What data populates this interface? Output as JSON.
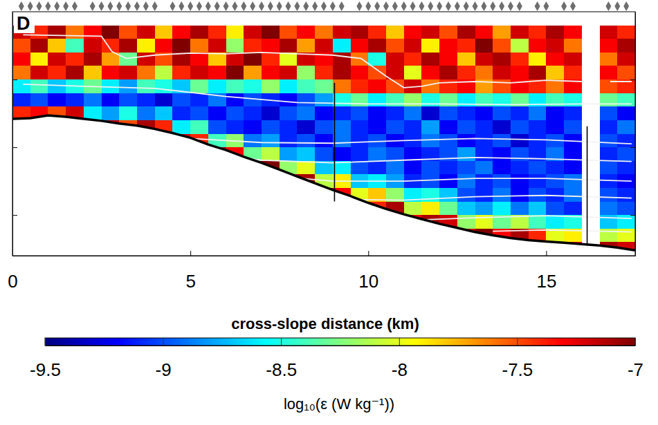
{
  "chart_data": {
    "type": "heatmap",
    "panel_label": "D",
    "xlabel": "cross-slope distance (km)",
    "xlim": [
      0,
      17.5
    ],
    "xticks": [
      0,
      5,
      10,
      15
    ],
    "ylim": [
      0,
      360
    ],
    "yticks": [
      100,
      200,
      300
    ],
    "tick_labels": "x",
    "cells": {
      "x": [
        0.25,
        0.75,
        1.25,
        1.75,
        2.25,
        2.75,
        3.25,
        3.75,
        4.25,
        4.75,
        5.25,
        5.75,
        6.25,
        6.75,
        7.25,
        7.75,
        8.25,
        8.75,
        9.25,
        9.75,
        10.25,
        10.75,
        11.25,
        11.75,
        12.25,
        12.75,
        13.25,
        13.75,
        14.25,
        14.75,
        15.25,
        15.75,
        16.25,
        16.75,
        17.25
      ],
      "y": [
        10,
        30,
        50,
        70,
        90,
        110,
        130,
        150,
        170,
        190,
        210,
        230,
        250,
        270,
        290,
        310,
        330,
        350
      ],
      "values": [
        [
          null,
          null,
          null,
          null,
          null,
          null,
          null,
          null,
          null,
          null,
          null,
          null,
          null,
          null,
          null,
          null,
          null,
          null,
          null,
          null,
          null,
          null,
          null,
          null,
          null,
          null,
          null,
          null,
          null,
          null,
          null,
          null,
          null,
          null,
          null
        ],
        [
          -7.2,
          -7.4,
          -7.1,
          -7.6,
          -7.3,
          -7.0,
          -7.5,
          -7.2,
          -7.8,
          -7.3,
          -7.1,
          -7.4,
          -7.9,
          -7.2,
          -7.0,
          -7.5,
          -7.3,
          -7.6,
          -7.2,
          -7.1,
          -7.4,
          -7.8,
          -7.3,
          -7.2,
          -7.5,
          -7.1,
          -7.3,
          -7.7,
          -7.2,
          -7.4,
          -7.1,
          -7.3,
          null,
          -7.2,
          -7.4
        ],
        [
          -7.5,
          -7.1,
          -7.8,
          -8.4,
          -7.2,
          -7.4,
          -7.1,
          -7.9,
          -7.3,
          -7.0,
          -7.6,
          -7.2,
          -8.2,
          -7.4,
          -7.3,
          -7.1,
          -7.7,
          -7.2,
          -8.6,
          -7.3,
          -7.1,
          -7.5,
          -7.2,
          -7.9,
          -7.3,
          -7.4,
          -7.0,
          -7.5,
          -8.1,
          -7.3,
          -7.2,
          -7.6,
          null,
          -7.3,
          -7.1
        ],
        [
          -7.3,
          -7.9,
          -7.2,
          -7.4,
          -7.1,
          -7.7,
          -8.3,
          -7.2,
          -7.5,
          -7.1,
          -7.3,
          -7.8,
          -7.2,
          -7.0,
          -7.4,
          -8.0,
          -7.2,
          -7.3,
          -7.1,
          -7.6,
          -8.5,
          -7.2,
          -7.4,
          -7.1,
          -7.3,
          -7.8,
          -7.2,
          -7.1,
          -7.4,
          -7.9,
          -7.3,
          -7.2,
          null,
          -7.6,
          -7.2
        ],
        [
          -7.6,
          -7.2,
          -7.4,
          -7.1,
          -7.8,
          -7.3,
          -7.2,
          -7.6,
          -8.1,
          -7.4,
          -7.2,
          -7.3,
          -7.0,
          -7.7,
          -7.3,
          -7.2,
          -8.2,
          -7.4,
          -7.1,
          -7.3,
          -7.5,
          -7.2,
          -8.0,
          -7.3,
          -7.1,
          -7.4,
          -7.6,
          -7.2,
          -7.3,
          -7.1,
          -7.8,
          -7.4,
          null,
          -7.3,
          -7.5
        ],
        [
          -8.6,
          -8.4,
          -8.7,
          -8.5,
          -8.3,
          -8.6,
          -8.8,
          -8.4,
          -8.5,
          -8.7,
          -8.3,
          -8.6,
          -8.4,
          -8.5,
          -8.2,
          -8.6,
          -8.4,
          -8.3,
          -7.6,
          -7.4,
          -7.3,
          -7.5,
          -7.2,
          -7.6,
          -7.4,
          -7.3,
          -7.7,
          -7.5,
          -7.3,
          -7.4,
          -7.6,
          -7.3,
          null,
          -7.5,
          -7.4
        ],
        [
          -9.1,
          -9.0,
          -9.2,
          -9.1,
          -8.9,
          -9.2,
          -9.0,
          -9.1,
          -9.3,
          -9.0,
          -9.1,
          -8.9,
          -9.2,
          -9.0,
          -9.1,
          -9.2,
          -9.0,
          -8.8,
          -8.5,
          -8.3,
          -8.6,
          -8.4,
          -8.2,
          -8.5,
          -8.3,
          -8.6,
          -8.4,
          -8.5,
          -8.3,
          -8.6,
          -8.4,
          -8.5,
          null,
          -8.3,
          -8.4
        ],
        [
          -7.4,
          -7.3,
          -7.5,
          -7.2,
          -8.6,
          -8.8,
          -8.5,
          -8.9,
          -8.7,
          -9.1,
          -9.0,
          -9.2,
          -9.0,
          -9.1,
          -9.3,
          -9.0,
          -8.9,
          -9.2,
          -9.1,
          -9.0,
          -9.2,
          -9.1,
          -8.9,
          -9.3,
          -9.0,
          -9.1,
          -9.2,
          -9.0,
          -9.1,
          -8.9,
          -9.2,
          -9.1,
          null,
          -9.0,
          -9.2
        ],
        [
          null,
          null,
          null,
          null,
          -7.3,
          -7.2,
          -7.5,
          -7.1,
          -7.4,
          -8.6,
          -8.4,
          -9.0,
          -9.1,
          -9.2,
          -9.0,
          -9.1,
          -9.3,
          -9.0,
          -8.9,
          -9.1,
          -9.2,
          -9.0,
          -9.1,
          -8.8,
          -9.2,
          -9.0,
          -9.1,
          -9.3,
          -9.0,
          -9.1,
          -9.2,
          -9.0,
          null,
          -9.1,
          -8.9
        ],
        [
          null,
          null,
          null,
          null,
          null,
          null,
          null,
          null,
          null,
          -7.2,
          -7.4,
          -8.4,
          -8.2,
          -8.9,
          -8.8,
          -9.1,
          -9.0,
          -9.2,
          -8.9,
          -9.1,
          -9.0,
          -9.2,
          -9.1,
          -8.9,
          -9.0,
          -9.2,
          -9.1,
          -9.0,
          -9.3,
          -9.1,
          -9.0,
          -9.2,
          null,
          -9.0,
          -9.1
        ],
        [
          null,
          null,
          null,
          null,
          null,
          null,
          null,
          null,
          null,
          null,
          null,
          -7.1,
          -7.3,
          -8.3,
          -8.1,
          -8.8,
          -8.7,
          -9.0,
          -9.2,
          -9.1,
          -8.9,
          -9.0,
          -9.2,
          -9.1,
          -9.0,
          -8.8,
          -9.1,
          -9.2,
          -9.0,
          -9.1,
          -8.9,
          -9.2,
          null,
          -9.1,
          -9.0
        ],
        [
          null,
          null,
          null,
          null,
          null,
          null,
          null,
          null,
          null,
          null,
          null,
          null,
          null,
          -7.2,
          -7.0,
          -8.2,
          -8.0,
          -8.7,
          -8.6,
          -9.0,
          -9.1,
          -8.9,
          -9.2,
          -9.0,
          -9.1,
          -9.0,
          -8.9,
          -9.2,
          -9.1,
          -9.0,
          -9.1,
          -9.2,
          null,
          -9.0,
          -9.1
        ],
        [
          null,
          null,
          null,
          null,
          null,
          null,
          null,
          null,
          null,
          null,
          null,
          null,
          null,
          null,
          null,
          -7.3,
          -7.1,
          -8.1,
          -7.9,
          -8.7,
          -8.6,
          -8.8,
          -9.1,
          -9.0,
          -9.2,
          -8.9,
          -9.1,
          -9.0,
          -9.2,
          -9.1,
          -9.0,
          -8.9,
          null,
          -9.1,
          -9.2
        ],
        [
          null,
          null,
          null,
          null,
          null,
          null,
          null,
          null,
          null,
          null,
          null,
          null,
          null,
          null,
          null,
          null,
          null,
          -7.1,
          -7.3,
          -8.0,
          -7.8,
          -8.2,
          -8.6,
          -8.5,
          -8.7,
          -9.0,
          -9.1,
          -8.9,
          -9.2,
          -9.0,
          -9.1,
          -8.9,
          null,
          -9.0,
          -9.1
        ],
        [
          null,
          null,
          null,
          null,
          null,
          null,
          null,
          null,
          null,
          null,
          null,
          null,
          null,
          null,
          null,
          null,
          null,
          null,
          null,
          -7.2,
          -7.4,
          -7.1,
          -8.1,
          -7.9,
          -8.3,
          -8.7,
          -8.8,
          -8.6,
          -8.9,
          -8.7,
          -9.0,
          -9.1,
          null,
          -8.9,
          -9.0
        ],
        [
          null,
          null,
          null,
          null,
          null,
          null,
          null,
          null,
          null,
          null,
          null,
          null,
          null,
          null,
          null,
          null,
          null,
          null,
          null,
          null,
          null,
          null,
          -7.3,
          -7.1,
          -7.2,
          -8.2,
          -8.0,
          -8.3,
          -8.1,
          -8.4,
          -8.6,
          -8.5,
          null,
          -8.7,
          -8.6
        ],
        [
          null,
          null,
          null,
          null,
          null,
          null,
          null,
          null,
          null,
          null,
          null,
          null,
          null,
          null,
          null,
          null,
          null,
          null,
          null,
          null,
          null,
          null,
          null,
          null,
          null,
          -7.2,
          -7.0,
          -7.3,
          -7.1,
          -7.4,
          -8.0,
          -7.9,
          null,
          -8.1,
          -8.0
        ],
        [
          null,
          null,
          null,
          null,
          null,
          null,
          null,
          null,
          null,
          null,
          null,
          null,
          null,
          null,
          null,
          null,
          null,
          null,
          null,
          null,
          null,
          null,
          null,
          null,
          null,
          null,
          null,
          null,
          null,
          null,
          -7.2,
          -7.3,
          null,
          -7.1,
          -7.2
        ]
      ]
    },
    "colorbar": {
      "label": "log₁₀(ε (W kg⁻¹))",
      "lim": [
        -9.5,
        -7
      ],
      "ticks": [
        -9.5,
        -9,
        -8.5,
        -8,
        -7.5,
        -7
      ]
    },
    "bathymetry": {
      "x": [
        0,
        0.5,
        1,
        1.5,
        2,
        2.5,
        3,
        3.5,
        4,
        4.5,
        5,
        5.5,
        6,
        6.5,
        7,
        7.5,
        8,
        8.5,
        9,
        9.5,
        10,
        10.5,
        11,
        11.5,
        12,
        12.5,
        13,
        13.5,
        14,
        14.5,
        15,
        15.5,
        16,
        16.5,
        17,
        17.5
      ],
      "y": [
        158,
        157,
        153,
        155,
        158,
        161,
        165,
        168,
        173,
        179,
        186,
        196,
        204,
        214,
        223,
        233,
        243,
        253,
        263,
        272,
        282,
        291,
        299,
        306,
        313,
        319,
        325,
        330,
        334,
        337,
        339,
        341,
        343,
        345,
        348,
        352
      ]
    },
    "isopycnals": [
      {
        "x": [
          0.3,
          2.5,
          2.8,
          3.2,
          4,
          5,
          6,
          7,
          8,
          9,
          9.8,
          10.5,
          11,
          11.5,
          12,
          13,
          14,
          15,
          16,
          16.4,
          16.8,
          17.4
        ],
        "y": [
          34,
          36,
          59,
          69,
          64,
          61,
          62,
          60,
          62,
          64,
          69,
          95,
          112,
          110,
          105,
          103,
          105,
          101,
          103,
          null,
          103,
          103
        ]
      },
      {
        "x": [
          0.3,
          2,
          4,
          6,
          8,
          10,
          12,
          14,
          16,
          17.4
        ],
        "y": [
          107,
          110,
          113,
          125,
          134,
          136,
          136,
          137,
          136,
          136
        ]
      },
      {
        "x": [
          3.5,
          5,
          7,
          9,
          11,
          13,
          15,
          17.4
        ],
        "y": [
          177,
          187,
          193,
          194,
          190,
          187,
          189,
          195
        ]
      },
      {
        "x": [
          5.5,
          7,
          9,
          11,
          13,
          15,
          17.4
        ],
        "y": [
          209,
          219,
          223,
          219,
          215,
          217,
          221
        ]
      },
      {
        "x": [
          7.5,
          9,
          11,
          13,
          15,
          17.4
        ],
        "y": [
          243,
          250,
          250,
          246,
          246,
          250
        ]
      },
      {
        "x": [
          9.5,
          11,
          13,
          15,
          17.4
        ],
        "y": [
          277,
          278,
          273,
          271,
          275
        ]
      },
      {
        "x": [
          11.5,
          13,
          15,
          17.4
        ],
        "y": [
          307,
          304,
          301,
          305
        ]
      },
      {
        "x": [
          13.5,
          15,
          17.4
        ],
        "y": [
          324,
          322,
          325
        ]
      }
    ],
    "profiles": {
      "x": [
        0.25,
        0.5,
        0.75,
        1,
        1.25,
        1.5,
        1.75,
        2.25,
        2.5,
        2.75,
        3,
        3.25,
        3.5,
        3.75,
        4,
        4.5,
        4.75,
        5,
        5.25,
        5.5,
        5.75,
        6,
        6.25,
        6.5,
        6.75,
        7,
        7.25,
        7.5,
        7.75,
        8,
        8.25,
        8.5,
        8.75,
        9,
        9.25,
        9.75,
        10,
        10.25,
        10.5,
        10.75,
        11,
        11.25,
        11.5,
        11.75,
        12,
        12.25,
        12.5,
        12.75,
        13,
        13.25,
        13.5,
        13.75,
        14,
        14.25,
        14.75,
        15,
        15.5,
        15.75,
        16.75,
        17,
        17.25
      ]
    },
    "vertical_lines": [
      {
        "x": 9.05,
        "y": [
          105,
          280
        ]
      },
      {
        "x": 16.15,
        "y": [
          169,
          345
        ]
      }
    ]
  }
}
